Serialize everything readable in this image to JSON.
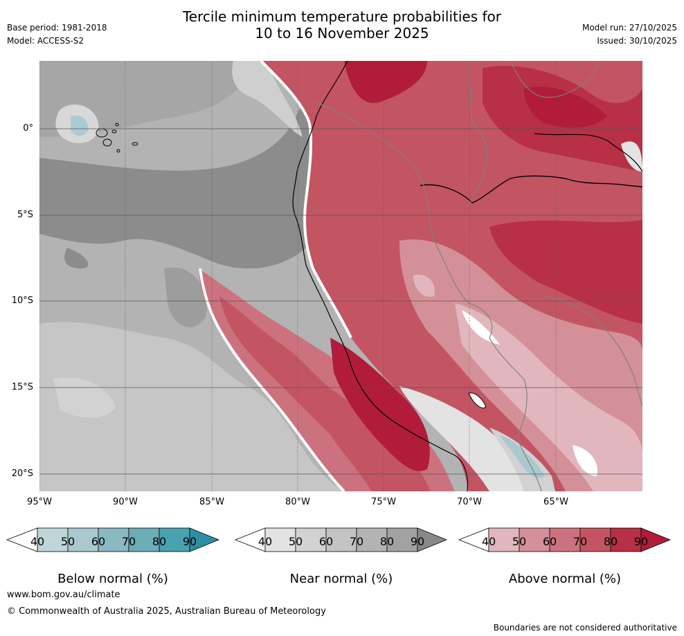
{
  "title_line1": "Tercile minimum temperature probabilities for",
  "title_line2": "10 to 16 November 2025",
  "meta": {
    "base_period": "Base period: 1981-2018",
    "model": "Model: ACCESS-S2",
    "model_run": "Model run: 27/10/2025",
    "issued": "Issued: 30/10/2025"
  },
  "axes": {
    "lon_ticks": [
      "95°W",
      "90°W",
      "85°W",
      "80°W",
      "75°W",
      "70°W",
      "65°W"
    ],
    "lat_ticks": [
      "0°",
      "5°S",
      "10°S",
      "15°S",
      "20°S"
    ]
  },
  "colorbars": [
    {
      "label": "Below normal (%)",
      "ticks": [
        "40",
        "50",
        "60",
        "70",
        "80",
        "90"
      ],
      "colors": [
        "#ffffff",
        "#bed5da",
        "#a9c9cf",
        "#8ab8c3",
        "#6dadb8",
        "#4aa1b0",
        "#2e8fa3"
      ]
    },
    {
      "label": "Near normal (%)",
      "ticks": [
        "40",
        "50",
        "60",
        "70",
        "80",
        "90"
      ],
      "colors": [
        "#ffffff",
        "#e3e3e3",
        "#d2d2d2",
        "#c3c3c3",
        "#b3b3b3",
        "#a2a2a2",
        "#888888"
      ]
    },
    {
      "label": "Above normal (%)",
      "ticks": [
        "40",
        "50",
        "60",
        "70",
        "80",
        "90"
      ],
      "colors": [
        "#ffffff",
        "#e1b7bd",
        "#d49098",
        "#cc727e",
        "#c35563",
        "#b73045",
        "#b01c3a"
      ]
    }
  ],
  "footer": {
    "website": "www.bom.gov.au/climate",
    "copyright": "© Commonwealth of Australia 2025, Australian Bureau of Meteorology",
    "disclaimer": "Boundaries are not considered authoritative"
  }
}
